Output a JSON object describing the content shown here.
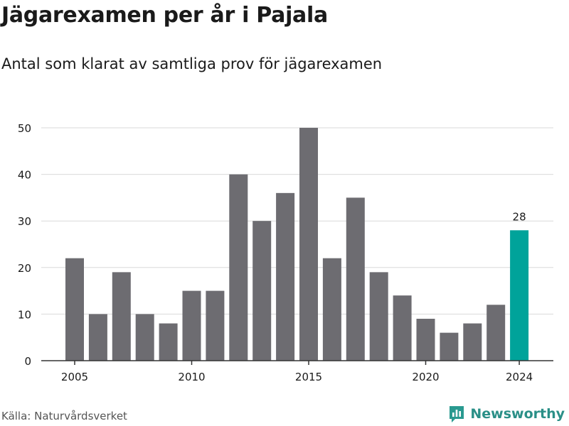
{
  "title": "Jägarexamen per år i Pajala",
  "subtitle": "Antal som klarat av samtliga prov för jägarexamen",
  "source": "Källa: Naturvårdsverket",
  "brand": {
    "name": "Newsworthy",
    "icon": "newsworthy-logo-icon",
    "color": "#2a9a90"
  },
  "colors": {
    "bar": "#6d6c71",
    "highlight": "#00a39a",
    "grid": "#d9d9d9",
    "axis": "#333333",
    "text": "#1a1a1a"
  },
  "chart_data": {
    "type": "bar",
    "title": "Jägarexamen per år i Pajala",
    "subtitle": "Antal som klarat av samtliga prov för jägarexamen",
    "xlabel": "",
    "ylabel": "",
    "x": [
      2005,
      2006,
      2007,
      2008,
      2009,
      2010,
      2011,
      2012,
      2013,
      2014,
      2015,
      2016,
      2017,
      2018,
      2019,
      2020,
      2021,
      2022,
      2023,
      2024
    ],
    "values": [
      22,
      10,
      19,
      10,
      8,
      15,
      15,
      40,
      30,
      36,
      50,
      22,
      35,
      19,
      14,
      9,
      6,
      8,
      12,
      28
    ],
    "ylim": [
      0,
      50
    ],
    "yticks": [
      0,
      10,
      20,
      30,
      40,
      50
    ],
    "xticks": [
      2005,
      2010,
      2015,
      2020,
      2024
    ],
    "highlight_index": 19,
    "value_labels": [
      {
        "x": 2024,
        "label": "28"
      }
    ],
    "grid": true,
    "legend": "none"
  }
}
